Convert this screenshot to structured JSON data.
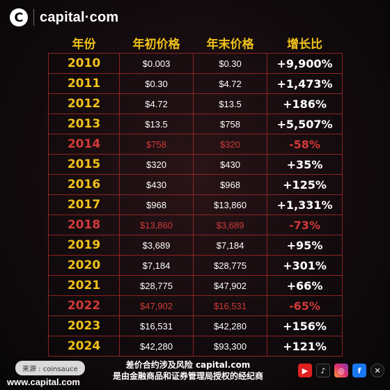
{
  "brand": {
    "logo_mark": "C",
    "name": "capital·com"
  },
  "table": {
    "headers": [
      "年份",
      "年初价格",
      "年末价格",
      "增长比"
    ],
    "rows": [
      {
        "year": "2010",
        "start": "$0.003",
        "end": "$0.30",
        "growth": "+9,900%",
        "negative": false
      },
      {
        "year": "2011",
        "start": "$0.30",
        "end": "$4.72",
        "growth": "+1,473%",
        "negative": false
      },
      {
        "year": "2012",
        "start": "$4.72",
        "end": "$13.5",
        "growth": "+186%",
        "negative": false
      },
      {
        "year": "2013",
        "start": "$13.5",
        "end": "$758",
        "growth": "+5,507%",
        "negative": false
      },
      {
        "year": "2014",
        "start": "$758",
        "end": "$320",
        "growth": "-58%",
        "negative": true
      },
      {
        "year": "2015",
        "start": "$320",
        "end": "$430",
        "growth": "+35%",
        "negative": false
      },
      {
        "year": "2016",
        "start": "$430",
        "end": "$968",
        "growth": "+125%",
        "negative": false
      },
      {
        "year": "2017",
        "start": "$968",
        "end": "$13,860",
        "growth": "+1,331%",
        "negative": false
      },
      {
        "year": "2018",
        "start": "$13,860",
        "end": "$3,689",
        "growth": "-73%",
        "negative": true
      },
      {
        "year": "2019",
        "start": "$3,689",
        "end": "$7,184",
        "growth": "+95%",
        "negative": false
      },
      {
        "year": "2020",
        "start": "$7,184",
        "end": "$28,775",
        "growth": "+301%",
        "negative": false
      },
      {
        "year": "2021",
        "start": "$28,775",
        "end": "$47,902",
        "growth": "+66%",
        "negative": false
      },
      {
        "year": "2022",
        "start": "$47,902",
        "end": "$16,531",
        "growth": "-65%",
        "negative": true
      },
      {
        "year": "2023",
        "start": "$16,531",
        "end": "$42,280",
        "growth": "+156%",
        "negative": false
      },
      {
        "year": "2024",
        "start": "$42,280",
        "end": "$93,300",
        "growth": "+121%",
        "negative": false
      }
    ]
  },
  "footer": {
    "source": "来源 : coinsauce",
    "website": "www.capital.com",
    "disclaimer_line1": "差价合约涉及风险 capital.com",
    "disclaimer_line2": "是由金融商品和证券管理局授权的经纪商"
  },
  "colors": {
    "accent": "#f1c21a",
    "negative": "#d33a3a",
    "border": "#8e2323"
  },
  "socials": [
    "youtube-icon",
    "tiktok-icon",
    "instagram-icon",
    "facebook-icon",
    "x-icon"
  ]
}
